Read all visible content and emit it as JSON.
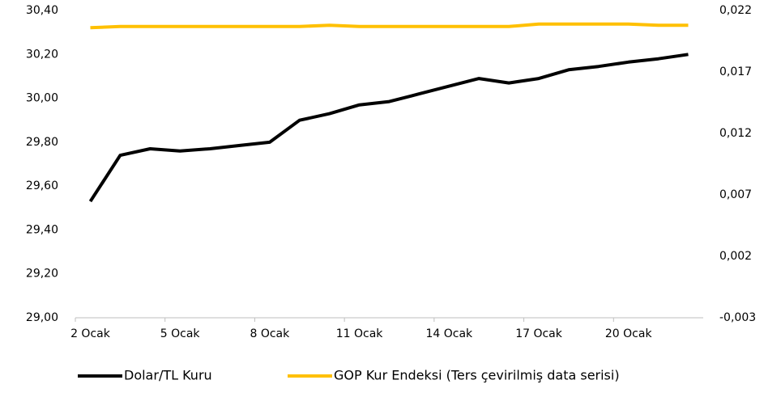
{
  "chart_data": {
    "type": "line",
    "categories": [
      "2 Ocak",
      null,
      null,
      "5 Ocak",
      null,
      null,
      "8 Ocak",
      null,
      null,
      "11 Ocak",
      null,
      null,
      "14 Ocak",
      null,
      null,
      "17 Ocak",
      null,
      null,
      "20 Ocak",
      null,
      null
    ],
    "series": [
      {
        "name": "Dolar/TL Kuru",
        "color": "#000000",
        "values": [
          29.53,
          29.74,
          29.77,
          29.76,
          29.77,
          29.785,
          29.8,
          29.9,
          29.93,
          29.97,
          29.985,
          30.02,
          30.055,
          30.09,
          30.07,
          30.09,
          30.13,
          30.145,
          30.165,
          30.18,
          30.2
        ]
      },
      {
        "name": "GOP Kur Endeksi (Ters çevirilmiş data serisi)",
        "color": "#ffc000",
        "axis": "y2",
        "values": [
          0.0206,
          0.0207,
          0.0207,
          0.0207,
          0.0207,
          0.0207,
          0.0207,
          0.0207,
          0.0208,
          0.0207,
          0.0207,
          0.0207,
          0.0207,
          0.0207,
          0.0207,
          0.0209,
          0.0209,
          0.0209,
          0.0209,
          0.0208,
          0.0208
        ]
      }
    ],
    "ylim": [
      29.0,
      30.4
    ],
    "yticks": [
      {
        "value": 29.0,
        "label": "29,00"
      },
      {
        "value": 29.2,
        "label": "29,20"
      },
      {
        "value": 29.4,
        "label": "29,40"
      },
      {
        "value": 29.6,
        "label": "29,60"
      },
      {
        "value": 29.8,
        "label": "29,80"
      },
      {
        "value": 30.0,
        "label": "30,00"
      },
      {
        "value": 30.2,
        "label": "30,20"
      },
      {
        "value": 30.4,
        "label": "30,40"
      }
    ],
    "y2lim": [
      -0.003,
      0.022
    ],
    "y2ticks": [
      {
        "value": -0.003,
        "label": "-0,003"
      },
      {
        "value": 0.002,
        "label": "0,002"
      },
      {
        "value": 0.007,
        "label": "0,007"
      },
      {
        "value": 0.012,
        "label": "0,012"
      },
      {
        "value": 0.017,
        "label": "0,017"
      },
      {
        "value": 0.022,
        "label": "0,022"
      }
    ],
    "grid": false,
    "legend": "bottom"
  }
}
